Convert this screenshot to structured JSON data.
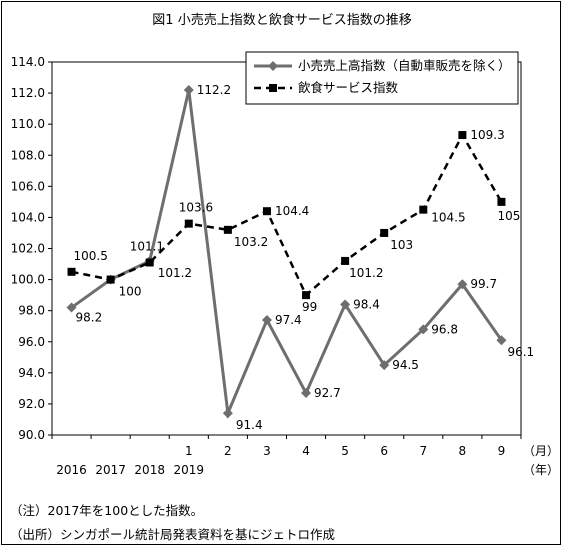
{
  "chart_data": {
    "type": "line",
    "title": "図1 小売売上指数と飲食サービス指数の推移",
    "y_ticks": [
      "114.0",
      "112.0",
      "110.0",
      "108.0",
      "106.0",
      "104.0",
      "102.0",
      "100.0",
      "98.0",
      "96.0",
      "94.0",
      "92.0",
      "90.0"
    ],
    "ylim": [
      90,
      114
    ],
    "x_tick_top": [
      "",
      "",
      "",
      "1",
      "2",
      "3",
      "4",
      "5",
      "6",
      "7",
      "8",
      "9"
    ],
    "x_tick_bottom": [
      "2016",
      "2017",
      "2018",
      "2019",
      "",
      "",
      "",
      "",
      "",
      "",
      "",
      ""
    ],
    "x_unit_month": "（月）",
    "x_unit_year": "（年）",
    "legend_position": "top-right",
    "series": [
      {
        "name": "小売売上高指数（自動車販売を除く）",
        "color": "#6e6e6e",
        "marker": "diamond",
        "style": "solid",
        "values": [
          98.2,
          100,
          101.2,
          112.2,
          91.4,
          97.4,
          92.7,
          98.4,
          94.5,
          96.8,
          99.7,
          96.1
        ],
        "labels": [
          "98.2",
          "100",
          "101.2",
          "112.2",
          "91.4",
          "97.4",
          "92.7",
          "98.4",
          "94.5",
          "96.8",
          "99.7",
          "96.1"
        ]
      },
      {
        "name": "飲食サービス指数",
        "color": "#000000",
        "marker": "square",
        "style": "dashed",
        "values": [
          100.5,
          100,
          101.1,
          103.6,
          103.2,
          104.4,
          99,
          101.2,
          103,
          104.5,
          109.3,
          105
        ],
        "labels": [
          "100.5",
          "",
          "101.1",
          "103.6",
          "103.2",
          "104.4",
          "99",
          "101.2",
          "103",
          "104.5",
          "109.3",
          "105"
        ]
      }
    ]
  },
  "notes": {
    "note1": "（注）2017年を100とした指数。",
    "note2": "（出所）シンガポール統計局発表資料を基にジェトロ作成"
  }
}
